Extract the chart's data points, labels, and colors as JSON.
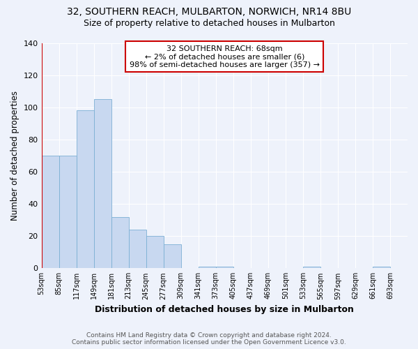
{
  "title": "32, SOUTHERN REACH, MULBARTON, NORWICH, NR14 8BU",
  "subtitle": "Size of property relative to detached houses in Mulbarton",
  "xlabel": "Distribution of detached houses by size in Mulbarton",
  "ylabel": "Number of detached properties",
  "categories": [
    "53sqm",
    "85sqm",
    "117sqm",
    "149sqm",
    "181sqm",
    "213sqm",
    "245sqm",
    "277sqm",
    "309sqm",
    "341sqm",
    "373sqm",
    "405sqm",
    "437sqm",
    "469sqm",
    "501sqm",
    "533sqm",
    "565sqm",
    "597sqm",
    "629sqm",
    "661sqm",
    "693sqm"
  ],
  "values": [
    70,
    70,
    98,
    105,
    32,
    24,
    20,
    15,
    0,
    1,
    1,
    0,
    0,
    0,
    0,
    1,
    0,
    0,
    0,
    1,
    0
  ],
  "bar_color": "#c8d8f0",
  "bar_edgecolor": "#7bafd4",
  "background_color": "#eef2fb",
  "grid_color": "#ffffff",
  "annotation_text": "32 SOUTHERN REACH: 68sqm\n← 2% of detached houses are smaller (6)\n98% of semi-detached houses are larger (357) →",
  "annotation_box_color": "#ffffff",
  "annotation_box_edgecolor": "#cc0000",
  "property_line_color": "#cc0000",
  "property_line_xidx": 0,
  "ylim": [
    0,
    140
  ],
  "yticks": [
    0,
    20,
    40,
    60,
    80,
    100,
    120,
    140
  ],
  "footer_line1": "Contains HM Land Registry data © Crown copyright and database right 2024.",
  "footer_line2": "Contains public sector information licensed under the Open Government Licence v3.0."
}
